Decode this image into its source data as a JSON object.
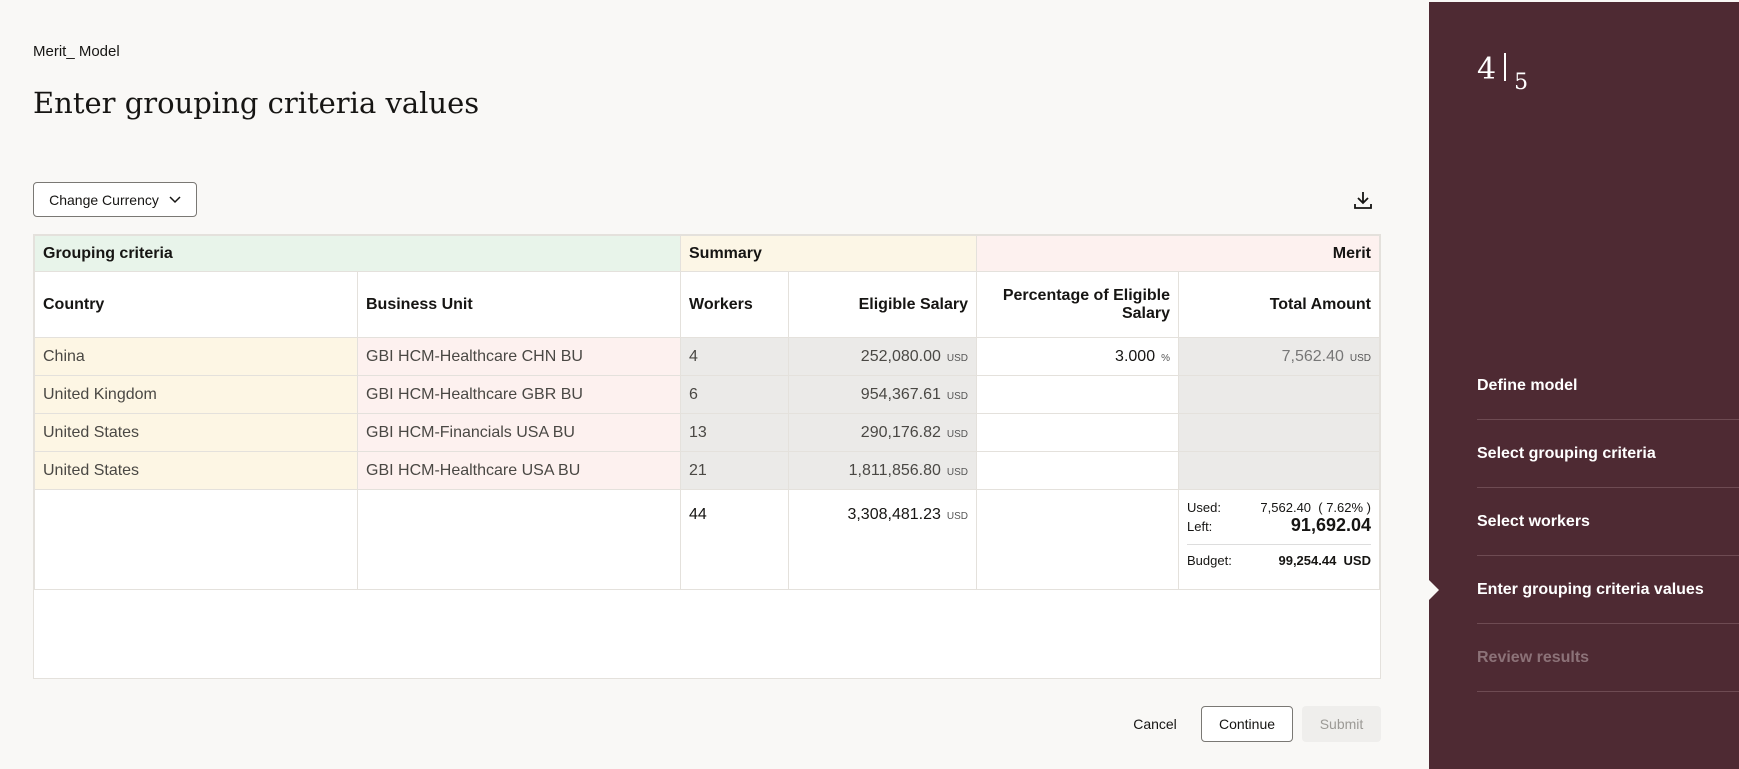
{
  "header": {
    "model": "Merit_ Model",
    "title": "Enter grouping criteria values"
  },
  "toolbar": {
    "change_currency": "Change Currency"
  },
  "table": {
    "groups": {
      "criteria": "Grouping criteria",
      "summary": "Summary",
      "merit": "Merit"
    },
    "columns": [
      "Country",
      "Business Unit",
      "Workers",
      "Eligible Salary",
      "Percentage of Eligible Salary",
      "Total Amount"
    ],
    "rows": [
      {
        "country": "China",
        "bu": "GBI HCM-Healthcare CHN BU",
        "workers": "4",
        "salary": "252,080.00",
        "cur": "USD",
        "pct": "3.000",
        "pct_unit": "%",
        "total": "7,562.40",
        "total_cur": "USD"
      },
      {
        "country": "United Kingdom",
        "bu": "GBI HCM-Healthcare GBR BU",
        "workers": "6",
        "salary": "954,367.61",
        "cur": "USD"
      },
      {
        "country": "United States",
        "bu": "GBI HCM-Financials USA BU",
        "workers": "13",
        "salary": "290,176.82",
        "cur": "USD"
      },
      {
        "country": "United States",
        "bu": "GBI HCM-Healthcare USA BU",
        "workers": "21",
        "salary": "1,811,856.80",
        "cur": "USD"
      }
    ],
    "footer": {
      "workers": "44",
      "salary": "3,308,481.23",
      "cur": "USD",
      "used_label": "Used:",
      "used": "7,562.40  ( 7.62% )",
      "left_label": "Left:",
      "left": "91,692.04",
      "budget_label": "Budget:",
      "budget": "99,254.44  USD"
    }
  },
  "actions": {
    "cancel": "Cancel",
    "continue": "Continue",
    "submit": "Submit"
  },
  "train": {
    "current": "4",
    "total": "5",
    "steps": [
      "Define model",
      "Select grouping criteria",
      "Select workers",
      "Enter grouping criteria values",
      "Review results"
    ],
    "active_index": 3
  },
  "colors": {
    "panel": "#4e2a33",
    "criteria": "#e8f4ea",
    "summary": "#fcf6e6",
    "merit": "#fdf1ef"
  }
}
